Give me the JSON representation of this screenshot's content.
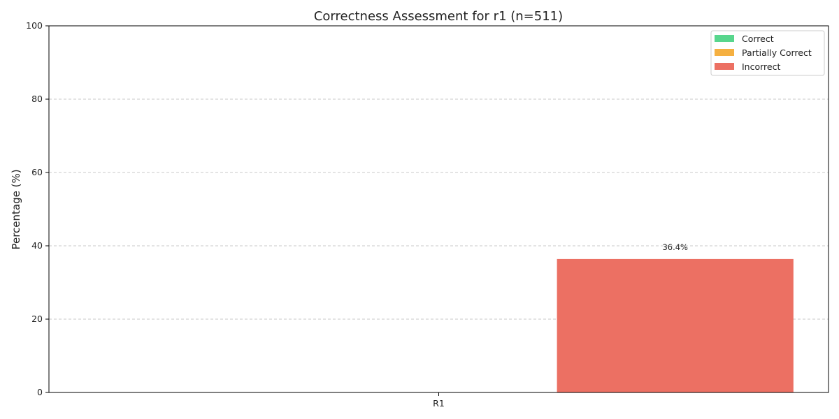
{
  "chart_data": {
    "type": "bar",
    "title": "Correctness Assessment for r1 (n=511)",
    "xlabel": "",
    "ylabel": "Percentage (%)",
    "categories": [
      "R1"
    ],
    "ylim": [
      0,
      100
    ],
    "yticks": [
      0,
      20,
      40,
      60,
      80,
      100
    ],
    "grid": true,
    "legend_position": "top-right",
    "series": [
      {
        "name": "Correct",
        "color": "#58d68d",
        "values": [
          0
        ]
      },
      {
        "name": "Partially Correct",
        "color": "#f5b041",
        "values": [
          0
        ]
      },
      {
        "name": "Incorrect",
        "color": "#ec7063",
        "values": [
          36.4
        ],
        "labels": [
          "36.4%"
        ]
      }
    ]
  }
}
